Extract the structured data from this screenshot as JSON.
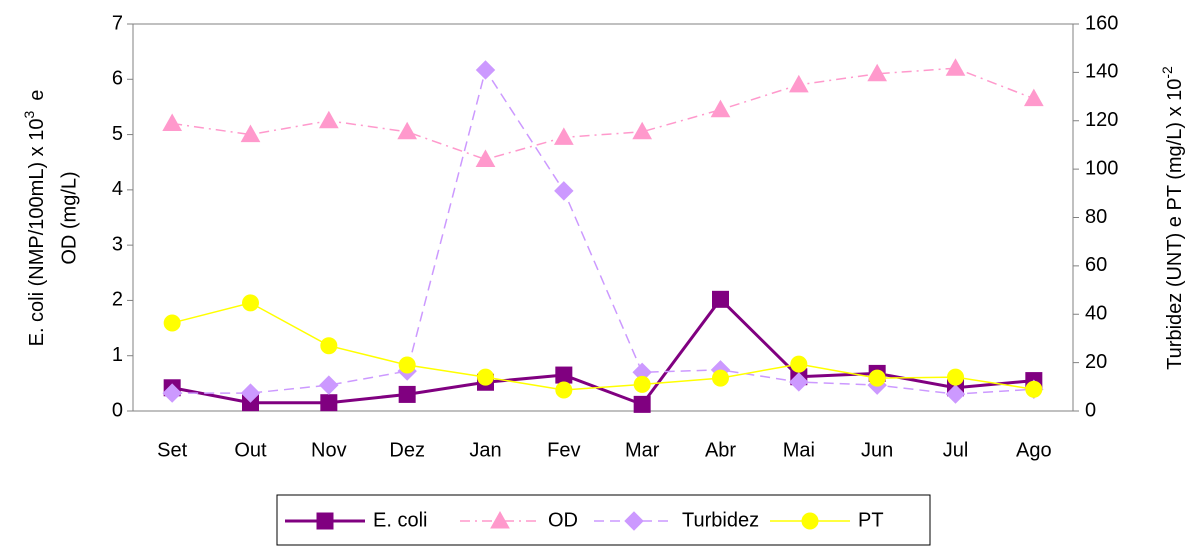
{
  "chart_data": {
    "type": "line",
    "ylabel": {
      "text": "E. coli (NMP/100mL) x 10",
      "sup": "3",
      "suffix": "e",
      "line2": "OD (mg/L)"
    },
    "y2label": {
      "text": "Turbidez (UNT) e PT (mg/L) x 10",
      "sup": "-2"
    },
    "categories": [
      "Set",
      "Out",
      "Nov",
      "Dez",
      "Jan",
      "Fev",
      "Mar",
      "Abr",
      "Mai",
      "Jun",
      "Jul",
      "Ago"
    ],
    "series": [
      {
        "name": "E. coli",
        "color": "#800080",
        "marker": "square",
        "dash": "solid",
        "axis": "y",
        "values": [
          0.42,
          0.15,
          0.15,
          0.3,
          0.52,
          0.65,
          0.12,
          2.02,
          0.62,
          0.68,
          0.42,
          0.55
        ]
      },
      {
        "name": "OD",
        "color": "#ff99cc",
        "marker": "triangle",
        "dash": "dashdot",
        "axis": "y",
        "values": [
          5.2,
          5.0,
          5.25,
          5.05,
          4.55,
          4.95,
          5.05,
          5.45,
          5.9,
          6.1,
          6.2,
          5.65
        ]
      },
      {
        "name": "Turbidez",
        "color": "#cc99ff",
        "marker": "diamond",
        "dash": "dashed",
        "axis": "y2",
        "values": [
          7.4,
          7.4,
          10.7,
          16.5,
          141,
          91,
          16,
          17,
          12,
          10.7,
          7,
          9
        ]
      },
      {
        "name": "PT",
        "color": "#ffff00",
        "marker": "circle",
        "dash": "solid",
        "axis": "y2",
        "values": [
          36.4,
          44.7,
          27,
          19,
          14,
          8.7,
          11,
          13.6,
          19.4,
          13.6,
          14,
          9
        ]
      }
    ],
    "ylim": [
      0,
      7
    ],
    "yticks": [
      0,
      1,
      2,
      3,
      4,
      5,
      6,
      7
    ],
    "y2lim": [
      0,
      160
    ],
    "y2ticks": [
      0,
      20,
      40,
      60,
      80,
      100,
      120,
      140,
      160
    ],
    "grid": false,
    "legend": "bottom"
  }
}
